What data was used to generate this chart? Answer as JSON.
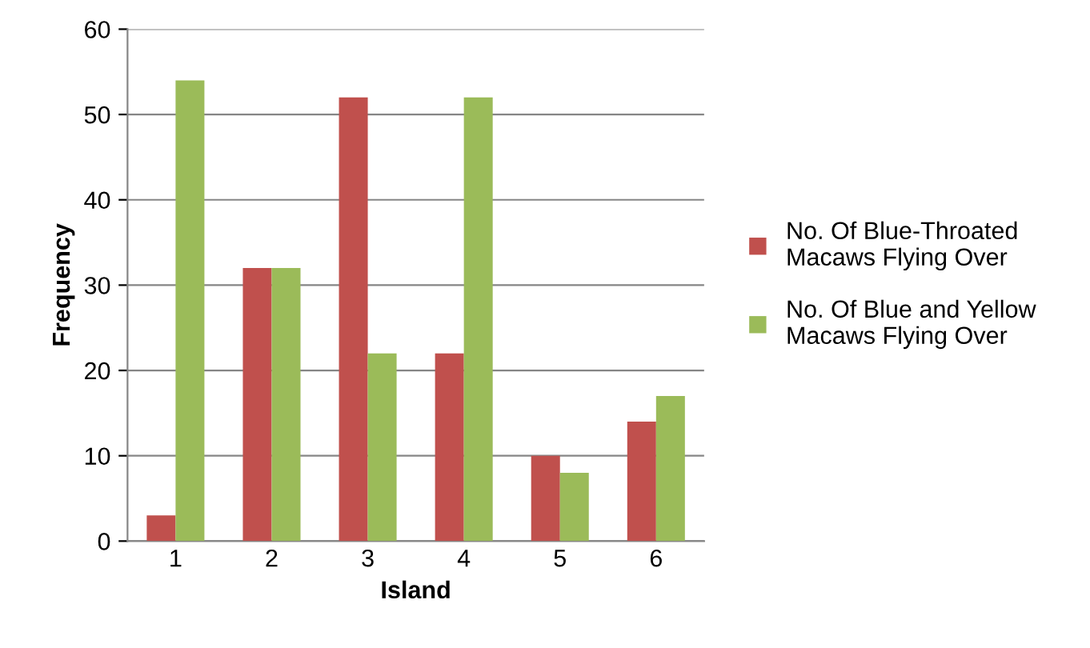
{
  "chart_data": {
    "type": "bar",
    "xlabel": "Island",
    "ylabel": "Frequency",
    "categories": [
      "1",
      "2",
      "3",
      "4",
      "5",
      "6"
    ],
    "series": [
      {
        "name": "No. Of Blue-Throated Macaws Flying Over",
        "color": "#c0504d",
        "values": [
          3,
          32,
          52,
          22,
          10,
          14
        ]
      },
      {
        "name": "No. Of Blue and Yellow Macaws Flying Over",
        "color": "#9bbb59",
        "values": [
          54,
          32,
          22,
          52,
          8,
          17
        ]
      }
    ],
    "ylim": [
      0,
      60
    ],
    "yticks": [
      0,
      10,
      20,
      30,
      40,
      50,
      60
    ],
    "grid": "y",
    "legend": "right"
  }
}
